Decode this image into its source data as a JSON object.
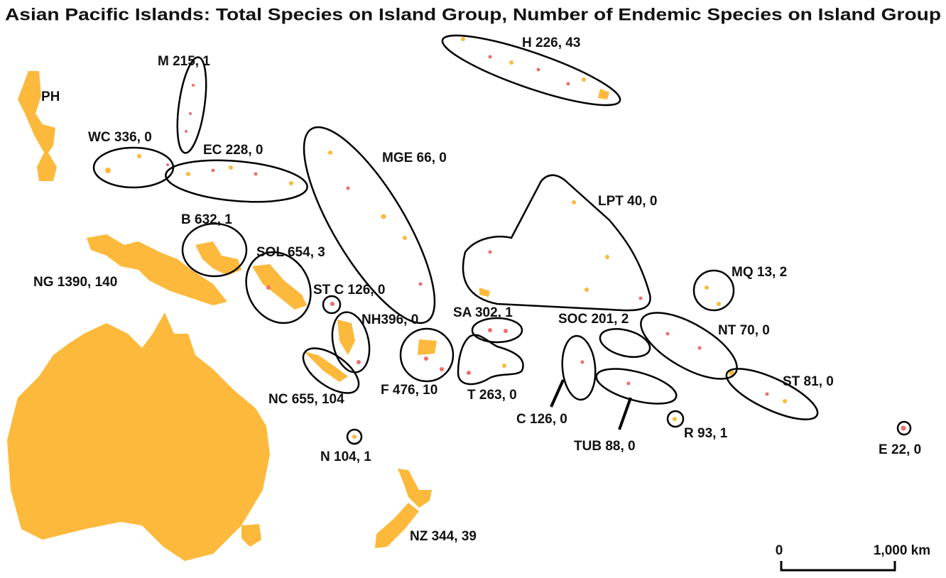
{
  "title": "Asian Pacific Islands: Total Species on Island Group, Number of Endemic Species on Island Group",
  "labels": [
    "PH",
    "M 215, 1",
    "WC 336, 0",
    "EC 228, 0",
    "H 226, 43",
    "MGE 66, 0",
    "LPT 40, 0",
    "B 632, 1",
    "SOL 654, 3",
    "NG 1390, 140",
    "ST C 126, 0",
    "MQ 13, 2",
    "SA 302, 1",
    "NH396, 0",
    "SOC 201, 2",
    "NT 70, 0",
    "ST 81, 0",
    "F 476, 10",
    "T 263, 0",
    "NC 655, 104",
    "C 126, 0",
    "TUB 88, 0",
    "R 93, 1",
    "E 22, 0",
    "N 104, 1",
    "NZ 344, 39"
  ],
  "scale_bar": {
    "start": "0",
    "end": "1,000 km"
  }
}
